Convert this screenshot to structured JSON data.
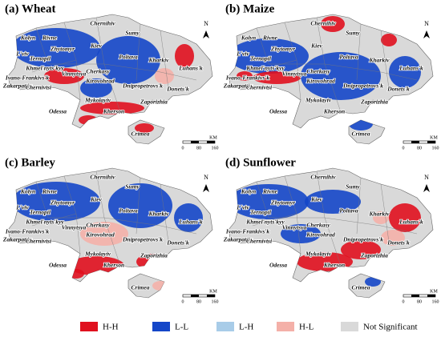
{
  "panels": [
    {
      "label": "(a) Wheat"
    },
    {
      "label": "(b) Maize"
    },
    {
      "label": "(c) Barley"
    },
    {
      "label": "(d) Sunflower"
    }
  ],
  "regions": [
    "Kolyn",
    "Rivne",
    "Chernihiv",
    "Sumy",
    "Zhytomyr",
    "Kiev",
    "L'viv",
    "Ternopil",
    "Khmel'nyts'kyy",
    "Poltava",
    "Kharkiv",
    "Luhans'k",
    "Ivano-Frankivs'k",
    "Vinnytsya",
    "Cherkasy",
    "Zakarpattia",
    "Chernivtsi",
    "Kirovohrad",
    "Dnipropetrovs'k",
    "Donets'k",
    "Mykolayiv",
    "Zaporizhia",
    "Odessa",
    "Kherson",
    "Crimea"
  ],
  "scale": {
    "ticks": [
      "0",
      "80",
      "160"
    ],
    "unit": "KM"
  },
  "north": "N",
  "legend": [
    {
      "label": "H-H",
      "color": "#e0101e"
    },
    {
      "label": "L-L",
      "color": "#1446c8"
    },
    {
      "label": "L-H",
      "color": "#a8cce8"
    },
    {
      "label": "H-L",
      "color": "#f4b0a8"
    },
    {
      "label": "Not Significant",
      "color": "#d9d9d9"
    }
  ]
}
